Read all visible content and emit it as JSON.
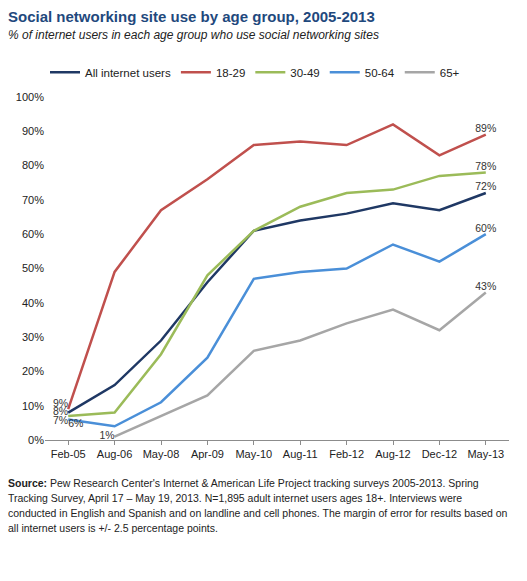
{
  "chart_data": {
    "type": "line",
    "title": "Social networking site use by age group, 2005-2013",
    "subtitle": "% of internet users in each age group who use social networking sites",
    "categories": [
      "Feb-05",
      "Aug-06",
      "May-08",
      "Apr-09",
      "May-10",
      "Aug-11",
      "Feb-12",
      "Aug-12",
      "Dec-12",
      "May-13"
    ],
    "series": [
      {
        "name": "All internet users",
        "color": "#1f3864",
        "values": [
          8,
          16,
          29,
          46,
          61,
          64,
          66,
          69,
          67,
          72
        ],
        "value_labels": [
          "8%",
          null,
          null,
          null,
          null,
          null,
          null,
          null,
          null,
          "72%"
        ]
      },
      {
        "name": "18-29",
        "color": "#c0504d",
        "values": [
          9,
          49,
          67,
          76,
          86,
          87,
          86,
          92,
          83,
          89
        ],
        "value_labels": [
          "9%",
          null,
          null,
          null,
          null,
          null,
          null,
          null,
          null,
          "89%"
        ]
      },
      {
        "name": "30-49",
        "color": "#9bbb59",
        "values": [
          7,
          8,
          25,
          48,
          61,
          68,
          72,
          73,
          77,
          78
        ],
        "value_labels": [
          "7%",
          null,
          null,
          null,
          null,
          null,
          null,
          null,
          null,
          "78%"
        ]
      },
      {
        "name": "50-64",
        "color": "#4a8fd8",
        "values": [
          6,
          4,
          11,
          24,
          47,
          49,
          50,
          57,
          52,
          60
        ],
        "value_labels": [
          "6%",
          null,
          null,
          null,
          null,
          null,
          null,
          null,
          null,
          "60%"
        ]
      },
      {
        "name": "65+",
        "color": "#a6a6a6",
        "values": [
          null,
          1,
          7,
          13,
          26,
          29,
          34,
          38,
          32,
          43
        ],
        "value_labels": [
          null,
          "1%",
          null,
          null,
          null,
          null,
          null,
          null,
          null,
          "43%"
        ]
      }
    ],
    "ylim": [
      0,
      100
    ],
    "yticks": [
      {
        "value": 0,
        "label": "0%"
      },
      {
        "value": 10,
        "label": "10%"
      },
      {
        "value": 20,
        "label": "20%"
      },
      {
        "value": 30,
        "label": "30%"
      },
      {
        "value": 40,
        "label": "40%"
      },
      {
        "value": 50,
        "label": "50%"
      },
      {
        "value": 60,
        "label": "60%"
      },
      {
        "value": 70,
        "label": "70%"
      },
      {
        "value": 80,
        "label": "80%"
      },
      {
        "value": 90,
        "label": "90%"
      },
      {
        "value": 100,
        "label": "100%"
      }
    ],
    "grid": false,
    "legend": "top",
    "data_labels": true,
    "source": {
      "label": "Source:",
      "text": "Pew Research Center's Internet & American Life Project tracking surveys 2005-2013. Spring Tracking Survey, April 17 – May 19, 2013. N=1,895 adult internet users ages 18+. Interviews were conducted in English and Spanish and on landline and cell phones.  The margin of error for results based on all internet users is +/- 2.5 percentage points."
    }
  }
}
